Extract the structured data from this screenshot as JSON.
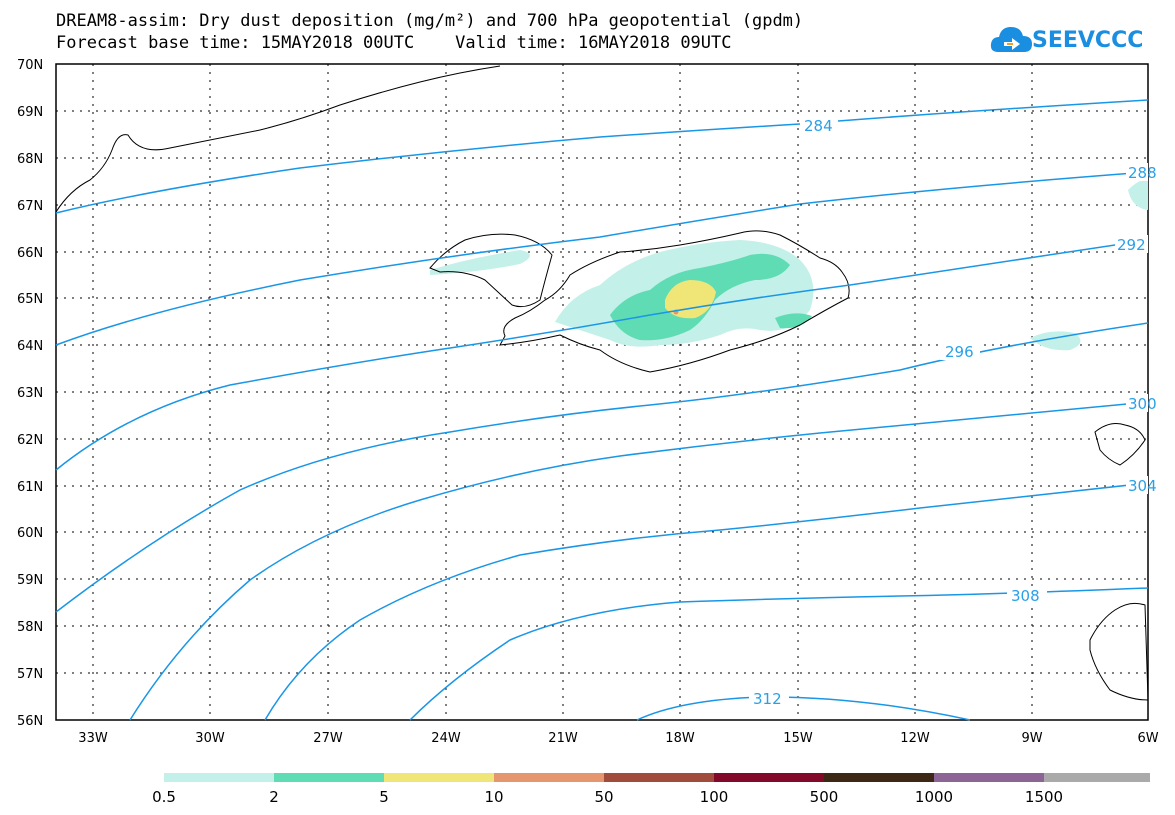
{
  "header": {
    "title_line1": "DREAM8-assim: Dry dust deposition (mg/m²) and 700 hPa geopotential (gpdm)",
    "title_line2": "Forecast base time: 15MAY2018 00UTC    Valid time: 16MAY2018 09UTC"
  },
  "logo": {
    "text": "SEEVCCC",
    "color": "#1a8ee0"
  },
  "map": {
    "lat_labels": [
      "70N",
      "69N",
      "68N",
      "67N",
      "66N",
      "65N",
      "64N",
      "63N",
      "62N",
      "61N",
      "60N",
      "59N",
      "58N",
      "57N",
      "56N"
    ],
    "lon_labels": [
      "33W",
      "30W",
      "27W",
      "24W",
      "21W",
      "18W",
      "15W",
      "12W",
      "9W",
      "6W"
    ],
    "contour_color": "#1a96e6",
    "contour_labels": [
      "284",
      "288",
      "292",
      "296",
      "300",
      "304",
      "308",
      "312"
    ]
  },
  "colorbar": {
    "colors": [
      "#c3f0e8",
      "#5fdcb4",
      "#f0e678",
      "#e6966e",
      "#a04b3c",
      "#820a28",
      "#3c2814",
      "#8c6496",
      "#aaaaaa"
    ],
    "labels": [
      "0.5",
      "2",
      "5",
      "10",
      "50",
      "100",
      "500",
      "1000",
      "1500"
    ]
  }
}
